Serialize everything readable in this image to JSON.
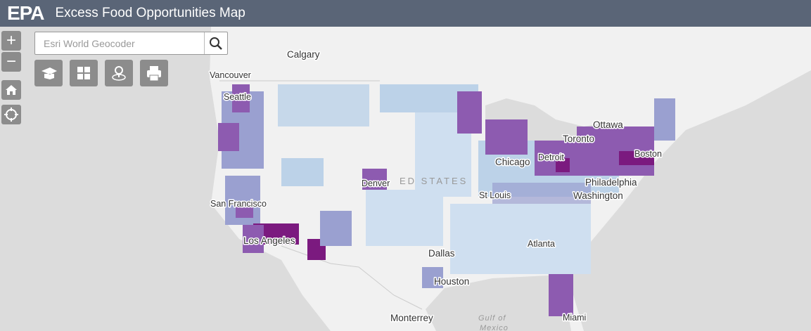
{
  "header": {
    "logo": "EPA",
    "title": "Excess Food Opportunities Map"
  },
  "search": {
    "placeholder": "Esri World Geocoder"
  },
  "zoom": {
    "in": "+",
    "out": "−"
  },
  "labels": {
    "calgary": "Calgary",
    "vancouver": "Vancouver",
    "seattle": "Seattle",
    "ottawa": "Ottawa",
    "toronto": "Toronto",
    "detroit": "Detroit",
    "chicago": "Chicago",
    "boston": "Boston",
    "philadelphia": "Philadelphia",
    "washington": "Washington",
    "st_louis": "St Louis",
    "denver": "Denver",
    "country": "ED STATES",
    "san_francisco": "San Francisco",
    "los_angeles": "Los Angeles",
    "dallas": "Dallas",
    "atlanta": "Atlanta",
    "houston": "Houston",
    "monterrey": "Monterrey",
    "gulf_1": "Gulf of",
    "gulf_2": "Mexico",
    "miami": "Miami"
  }
}
